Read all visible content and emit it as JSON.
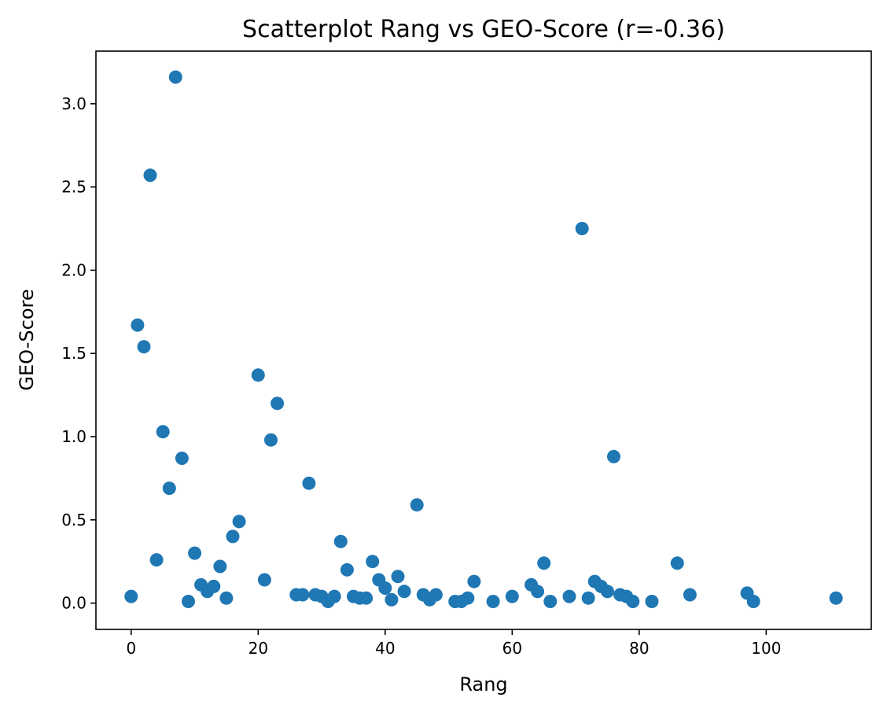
{
  "chart_data": {
    "type": "scatter",
    "title": "Scatterplot Rang vs GEO-Score (r=-0.36)",
    "xlabel": "Rang",
    "ylabel": "GEO-Score",
    "xlim": [
      -5.55,
      116.55
    ],
    "ylim": [
      -0.158,
      3.316
    ],
    "xticks": [
      0,
      20,
      40,
      60,
      80,
      100
    ],
    "xtick_labels": [
      "0",
      "20",
      "40",
      "60",
      "80",
      "100"
    ],
    "yticks": [
      0.0,
      0.5,
      1.0,
      1.5,
      2.0,
      2.5,
      3.0
    ],
    "ytick_labels": [
      "0.0",
      "0.5",
      "1.0",
      "1.5",
      "2.0",
      "2.5",
      "3.0"
    ],
    "grid": false,
    "marker_color": "#1f77b4",
    "points": [
      {
        "x": 0,
        "y": 0.04
      },
      {
        "x": 1,
        "y": 1.67
      },
      {
        "x": 2,
        "y": 1.54
      },
      {
        "x": 3,
        "y": 2.57
      },
      {
        "x": 4,
        "y": 0.26
      },
      {
        "x": 5,
        "y": 1.03
      },
      {
        "x": 6,
        "y": 0.69
      },
      {
        "x": 7,
        "y": 3.16
      },
      {
        "x": 8,
        "y": 0.87
      },
      {
        "x": 9,
        "y": 0.01
      },
      {
        "x": 10,
        "y": 0.3
      },
      {
        "x": 11,
        "y": 0.11
      },
      {
        "x": 12,
        "y": 0.07
      },
      {
        "x": 13,
        "y": 0.1
      },
      {
        "x": 14,
        "y": 0.22
      },
      {
        "x": 15,
        "y": 0.03
      },
      {
        "x": 16,
        "y": 0.4
      },
      {
        "x": 17,
        "y": 0.49
      },
      {
        "x": 20,
        "y": 1.37
      },
      {
        "x": 21,
        "y": 0.14
      },
      {
        "x": 22,
        "y": 0.98
      },
      {
        "x": 23,
        "y": 1.2
      },
      {
        "x": 26,
        "y": 0.05
      },
      {
        "x": 27,
        "y": 0.05
      },
      {
        "x": 28,
        "y": 0.72
      },
      {
        "x": 29,
        "y": 0.05
      },
      {
        "x": 30,
        "y": 0.04
      },
      {
        "x": 31,
        "y": 0.01
      },
      {
        "x": 32,
        "y": 0.04
      },
      {
        "x": 33,
        "y": 0.37
      },
      {
        "x": 34,
        "y": 0.2
      },
      {
        "x": 35,
        "y": 0.04
      },
      {
        "x": 36,
        "y": 0.03
      },
      {
        "x": 37,
        "y": 0.03
      },
      {
        "x": 38,
        "y": 0.25
      },
      {
        "x": 39,
        "y": 0.14
      },
      {
        "x": 40,
        "y": 0.09
      },
      {
        "x": 41,
        "y": 0.02
      },
      {
        "x": 42,
        "y": 0.16
      },
      {
        "x": 43,
        "y": 0.07
      },
      {
        "x": 45,
        "y": 0.59
      },
      {
        "x": 46,
        "y": 0.05
      },
      {
        "x": 47,
        "y": 0.02
      },
      {
        "x": 48,
        "y": 0.05
      },
      {
        "x": 51,
        "y": 0.01
      },
      {
        "x": 52,
        "y": 0.01
      },
      {
        "x": 53,
        "y": 0.03
      },
      {
        "x": 54,
        "y": 0.13
      },
      {
        "x": 57,
        "y": 0.01
      },
      {
        "x": 60,
        "y": 0.04
      },
      {
        "x": 63,
        "y": 0.11
      },
      {
        "x": 64,
        "y": 0.07
      },
      {
        "x": 65,
        "y": 0.24
      },
      {
        "x": 66,
        "y": 0.01
      },
      {
        "x": 69,
        "y": 0.04
      },
      {
        "x": 71,
        "y": 2.25
      },
      {
        "x": 72,
        "y": 0.03
      },
      {
        "x": 73,
        "y": 0.13
      },
      {
        "x": 74,
        "y": 0.1
      },
      {
        "x": 75,
        "y": 0.07
      },
      {
        "x": 76,
        "y": 0.88
      },
      {
        "x": 77,
        "y": 0.05
      },
      {
        "x": 78,
        "y": 0.04
      },
      {
        "x": 79,
        "y": 0.01
      },
      {
        "x": 82,
        "y": 0.01
      },
      {
        "x": 86,
        "y": 0.24
      },
      {
        "x": 88,
        "y": 0.05
      },
      {
        "x": 97,
        "y": 0.06
      },
      {
        "x": 98,
        "y": 0.01
      },
      {
        "x": 111,
        "y": 0.03
      }
    ]
  }
}
